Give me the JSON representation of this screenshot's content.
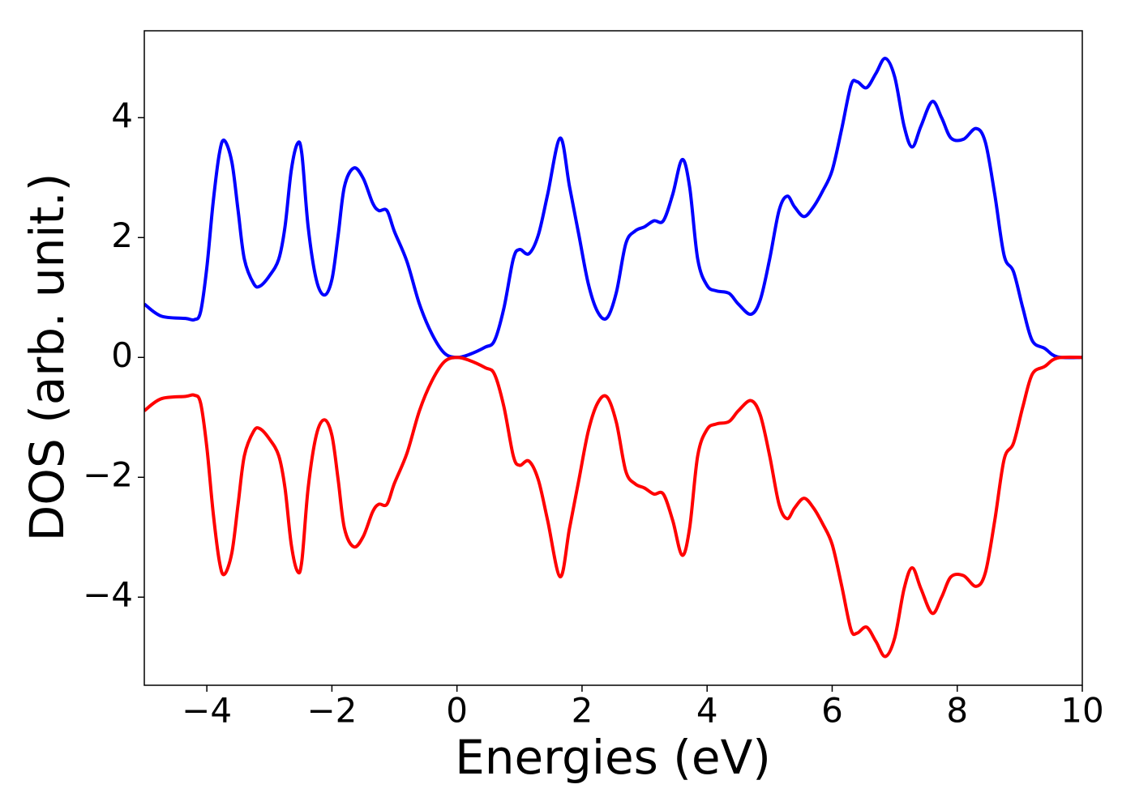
{
  "chart_data": {
    "type": "line",
    "x_label": "Energies (eV)",
    "y_label": "DOS (arb. unit.)",
    "x": [
      -5,
      -4.73,
      -4.34,
      -4.2,
      -4.1,
      -4.0,
      -3.9,
      -3.8,
      -3.72,
      -3.6,
      -3.5,
      -3.4,
      -3.25,
      -3.15,
      -3.0,
      -2.85,
      -2.75,
      -2.65,
      -2.55,
      -2.48,
      -2.38,
      -2.25,
      -2.12,
      -2.0,
      -1.9,
      -1.8,
      -1.65,
      -1.5,
      -1.35,
      -1.25,
      -1.12,
      -1.0,
      -0.8,
      -0.6,
      -0.4,
      -0.2,
      0.0,
      0.2,
      0.45,
      0.6,
      0.75,
      0.9,
      1.0,
      1.15,
      1.3,
      1.45,
      1.65,
      1.8,
      1.95,
      2.1,
      2.25,
      2.4,
      2.55,
      2.7,
      2.85,
      3.0,
      3.15,
      3.3,
      3.45,
      3.6,
      3.72,
      3.85,
      4.0,
      4.15,
      4.35,
      4.5,
      4.7,
      4.85,
      5.0,
      5.15,
      5.28,
      5.4,
      5.55,
      5.7,
      5.85,
      6.0,
      6.15,
      6.3,
      6.4,
      6.55,
      6.7,
      6.85,
      7.0,
      7.15,
      7.28,
      7.42,
      7.6,
      7.75,
      7.9,
      8.1,
      8.3,
      8.45,
      8.6,
      8.75,
      8.9,
      9.05,
      9.2,
      9.4,
      9.6,
      10
    ],
    "series": [
      {
        "color": "#0000ff",
        "values": [
          0.89,
          0.69,
          0.65,
          0.63,
          0.76,
          1.5,
          2.58,
          3.4,
          3.62,
          3.26,
          2.45,
          1.64,
          1.23,
          1.19,
          1.36,
          1.64,
          2.18,
          3.12,
          3.57,
          3.39,
          2.18,
          1.3,
          1.04,
          1.3,
          2.04,
          2.85,
          3.16,
          2.99,
          2.58,
          2.45,
          2.45,
          2.1,
          1.6,
          0.89,
          0.39,
          0.07,
          0.0,
          0.05,
          0.17,
          0.28,
          0.82,
          1.64,
          1.8,
          1.73,
          2.04,
          2.72,
          3.66,
          2.85,
          2.04,
          1.23,
          0.76,
          0.66,
          1.09,
          1.9,
          2.11,
          2.18,
          2.28,
          2.28,
          2.72,
          3.3,
          2.85,
          1.64,
          1.2,
          1.11,
          1.07,
          0.89,
          0.72,
          0.96,
          1.64,
          2.45,
          2.69,
          2.51,
          2.35,
          2.51,
          2.78,
          3.12,
          3.8,
          4.54,
          4.6,
          4.5,
          4.74,
          4.99,
          4.68,
          3.86,
          3.51,
          3.86,
          4.27,
          4.0,
          3.66,
          3.64,
          3.82,
          3.59,
          2.72,
          1.7,
          1.43,
          0.82,
          0.28,
          0.15,
          0.01,
          0
        ]
      },
      {
        "color": "#ff0000",
        "values": [
          -0.89,
          -0.69,
          -0.65,
          -0.63,
          -0.76,
          -1.5,
          -2.58,
          -3.4,
          -3.62,
          -3.26,
          -2.45,
          -1.64,
          -1.23,
          -1.19,
          -1.36,
          -1.64,
          -2.18,
          -3.12,
          -3.57,
          -3.39,
          -2.18,
          -1.3,
          -1.04,
          -1.3,
          -2.04,
          -2.85,
          -3.16,
          -2.99,
          -2.58,
          -2.45,
          -2.45,
          -2.1,
          -1.6,
          -0.89,
          -0.39,
          -0.07,
          0.0,
          -0.05,
          -0.17,
          -0.28,
          -0.82,
          -1.64,
          -1.8,
          -1.73,
          -2.04,
          -2.72,
          -3.66,
          -2.85,
          -2.04,
          -1.23,
          -0.76,
          -0.66,
          -1.09,
          -1.9,
          -2.11,
          -2.18,
          -2.28,
          -2.28,
          -2.72,
          -3.3,
          -2.85,
          -1.64,
          -1.2,
          -1.11,
          -1.07,
          -0.89,
          -0.72,
          -0.96,
          -1.64,
          -2.45,
          -2.69,
          -2.51,
          -2.35,
          -2.51,
          -2.78,
          -3.12,
          -3.8,
          -4.54,
          -4.6,
          -4.5,
          -4.74,
          -4.99,
          -4.68,
          -3.86,
          -3.51,
          -3.86,
          -4.27,
          -4.0,
          -3.66,
          -3.64,
          -3.82,
          -3.59,
          -2.72,
          -1.7,
          -1.43,
          -0.82,
          -0.28,
          -0.15,
          -0.01,
          0
        ]
      }
    ],
    "xlim": [
      -5,
      10
    ],
    "xticks": [
      {
        "value": -4,
        "label": "−4"
      },
      {
        "value": -2,
        "label": "−2"
      },
      0,
      2,
      4,
      6,
      8,
      10
    ],
    "ylim": [
      -5.47,
      5.45
    ],
    "yticks": [
      {
        "value": -4,
        "label": "−4"
      },
      {
        "value": -2,
        "label": "−2"
      },
      0,
      2,
      4
    ],
    "grid": false
  }
}
